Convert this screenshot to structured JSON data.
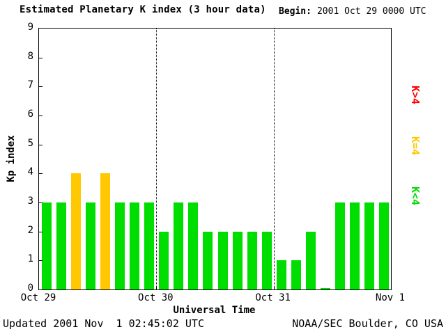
{
  "header": {
    "title": "Estimated Planetary K index (3 hour data)",
    "begin_label": "Begin:",
    "begin_value": "2001 Oct 29 0000 UTC"
  },
  "chart_data": {
    "type": "bar",
    "title": "Estimated Planetary K index (3 hour data)",
    "xlabel": "Universal Time",
    "ylabel": "Kp index",
    "ylim": [
      0,
      9
    ],
    "yticks": [
      0,
      1,
      2,
      3,
      4,
      5,
      6,
      7,
      8,
      9
    ],
    "day_labels": [
      "Oct 29",
      "Oct 30",
      "Oct 31",
      "Nov 1"
    ],
    "bars_per_day": 8,
    "values": [
      3,
      3,
      4,
      3,
      4,
      3,
      3,
      3,
      2,
      3,
      3,
      2,
      2,
      2,
      2,
      2,
      1,
      1,
      2,
      0,
      3,
      3,
      3,
      3
    ],
    "color_rule": "green K<4, yellow K=4, red K>4",
    "colors": {
      "low": "#00dd00",
      "mid": "#ffc800",
      "high": "#ff0000"
    },
    "grid": "dotted vertical lines at day boundaries",
    "legend_position": "right"
  },
  "legend": [
    {
      "label": "K>4",
      "color": "#ff0000"
    },
    {
      "label": "K=4",
      "color": "#ffc800"
    },
    {
      "label": "K<4",
      "color": "#00dd00"
    }
  ],
  "footer": {
    "updated": "Updated 2001 Nov  1 02:45:02 UTC",
    "source": "NOAA/SEC Boulder, CO USA"
  }
}
